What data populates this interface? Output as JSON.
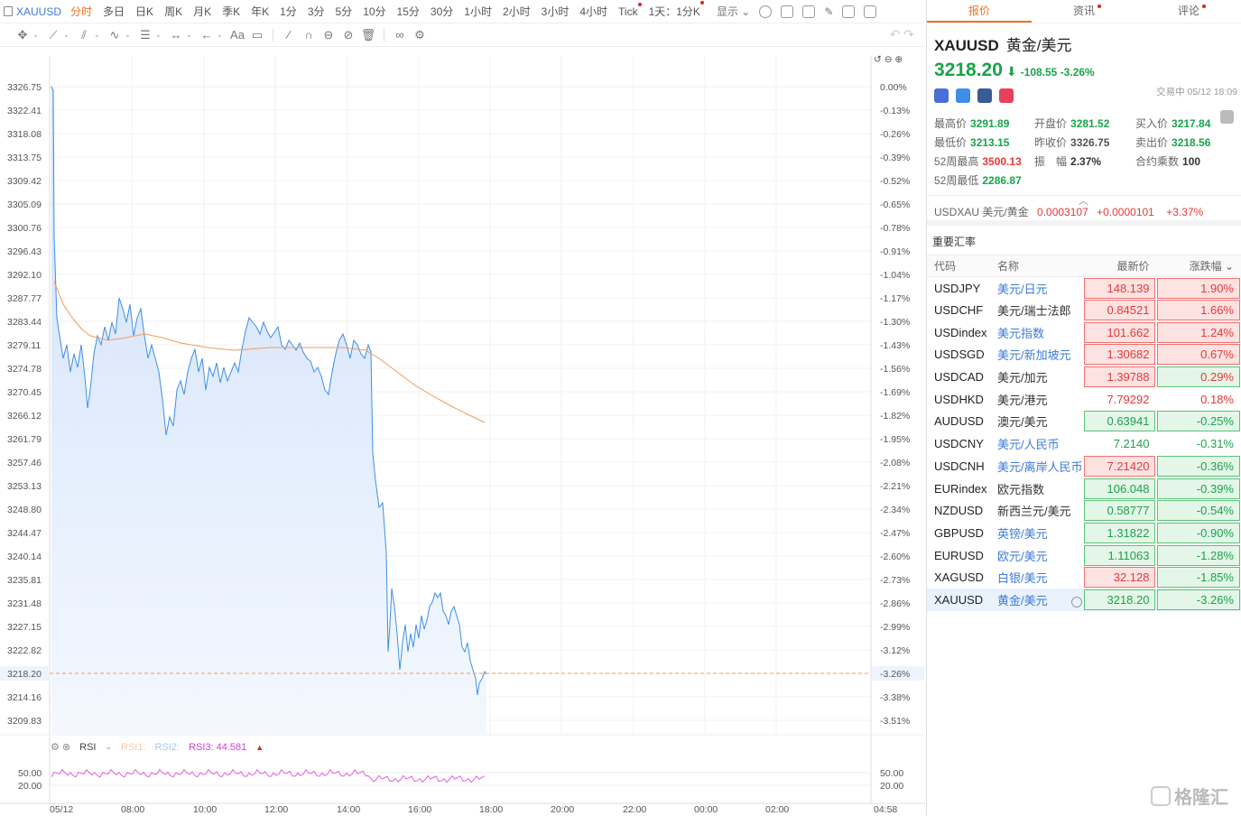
{
  "topbar": {
    "symbol": "XAUUSD",
    "periods": [
      {
        "label": "分时",
        "active": true,
        "dot": false
      },
      {
        "label": "多日",
        "active": false,
        "dot": false
      },
      {
        "label": "日K",
        "active": false,
        "dot": false
      },
      {
        "label": "周K",
        "active": false,
        "dot": false
      },
      {
        "label": "月K",
        "active": false,
        "dot": false
      },
      {
        "label": "季K",
        "active": false,
        "dot": false
      },
      {
        "label": "年K",
        "active": false,
        "dot": false
      },
      {
        "label": "1分",
        "active": false,
        "dot": false
      },
      {
        "label": "3分",
        "active": false,
        "dot": false
      },
      {
        "label": "5分",
        "active": false,
        "dot": false
      },
      {
        "label": "10分",
        "active": false,
        "dot": false
      },
      {
        "label": "15分",
        "active": false,
        "dot": false
      },
      {
        "label": "30分",
        "active": false,
        "dot": false
      },
      {
        "label": "1小时",
        "active": false,
        "dot": false
      },
      {
        "label": "2小时",
        "active": false,
        "dot": false
      },
      {
        "label": "3小时",
        "active": false,
        "dot": false
      },
      {
        "label": "4小时",
        "active": false,
        "dot": false
      },
      {
        "label": "Tick",
        "active": false,
        "dot": true
      },
      {
        "label": "1天：1分K",
        "active": false,
        "dot": true
      }
    ],
    "display_label": "显示",
    "display_dot": true
  },
  "toolbar": {
    "icons": [
      "crosshair-icon",
      "trend-line-icon",
      "channel-icon",
      "wave-icon",
      "fib-icon",
      "measure-icon",
      "arrow-icon",
      "text-icon",
      "comment-icon",
      "pencil-icon",
      "magnet-icon",
      "lock-icon",
      "hide-icon",
      "trash-icon",
      "link-icon",
      "settings-icon"
    ],
    "text_label": "Aa"
  },
  "chart": {
    "y_ticks": [
      "3326.75",
      "3322.41",
      "3318.08",
      "3313.75",
      "3309.42",
      "3305.09",
      "3300.76",
      "3296.43",
      "3292.10",
      "3287.77",
      "3283.44",
      "3279.11",
      "3274.78",
      "3270.45",
      "3266.12",
      "3261.79",
      "3257.46",
      "3253.13",
      "3248.80",
      "3244.47",
      "3240.14",
      "3235.81",
      "3231.48",
      "3227.15",
      "3222.82",
      "3218.20",
      "3214.16",
      "3209.83"
    ],
    "pct_ticks": [
      "0.00%",
      "-0.13%",
      "-0.26%",
      "-0.39%",
      "-0.52%",
      "-0.65%",
      "-0.78%",
      "-0.91%",
      "-1.04%",
      "-1.17%",
      "-1.30%",
      "-1.43%",
      "-1.56%",
      "-1.69%",
      "-1.82%",
      "-1.95%",
      "-2.08%",
      "-2.21%",
      "-2.34%",
      "-2.47%",
      "-2.60%",
      "-2.73%",
      "-2.86%",
      "-2.99%",
      "-3.12%",
      "-3.26%",
      "-3.38%",
      "-3.51%"
    ],
    "x_ticks": [
      "05/12",
      "08:00",
      "10:00",
      "12:00",
      "14:00",
      "16:00",
      "18:00",
      "20:00",
      "22:00",
      "00:00",
      "02:00",
      "04:58"
    ],
    "current_price": "3218.20",
    "current_pct": "-3.26%",
    "rsi_ticks": [
      "50.00",
      "20.00"
    ],
    "colors": {
      "price_line": "#3d8ee8",
      "avg_line": "#f49a55",
      "area": "#e3eefc",
      "rsi": "#e060e0",
      "current": "#f49a55"
    }
  },
  "rsi": {
    "label": "RSI",
    "rsi1": "RSI1:",
    "rsi2": "RSI2:",
    "rsi3_label": "RSI3:",
    "rsi3_value": "44.581",
    "arrow": "▲"
  },
  "panel": {
    "tabs": [
      {
        "label": "报价",
        "active": true,
        "dot": false
      },
      {
        "label": "资讯",
        "active": false,
        "dot": true
      },
      {
        "label": "评论",
        "active": false,
        "dot": true
      }
    ],
    "symbol": "XAUUSD",
    "name": "黄金/美元",
    "price": "3218.20",
    "arrow": "⬇",
    "change": "-108.55 -3.26%",
    "trade_time": "交易中 05/12 18:09",
    "stats": [
      {
        "k": "最高价",
        "v": "3291.89",
        "c": "green"
      },
      {
        "k": "开盘价",
        "v": "3281.52",
        "c": "green"
      },
      {
        "k": "买入价",
        "v": "3217.84",
        "c": "green"
      },
      {
        "k": "最低价",
        "v": "3213.15",
        "c": "green"
      },
      {
        "k": "昨收价",
        "v": "3326.75",
        "c": "gray"
      },
      {
        "k": "卖出价",
        "v": "3218.56",
        "c": "green"
      },
      {
        "k": "52周最高",
        "v": "3500.13",
        "c": "red"
      },
      {
        "k": "振　幅",
        "v": "2.37%",
        "c": "dark"
      },
      {
        "k": "合约乘数",
        "v": "100",
        "c": "dark"
      },
      {
        "k": "52周最低",
        "v": "2286.87",
        "c": "green"
      },
      {
        "k": "",
        "v": "",
        "c": "dark"
      },
      {
        "k": "",
        "v": "",
        "c": "dark"
      }
    ],
    "usdxau": {
      "name": "USDXAU 美元/黄金",
      "price": "0.0003107",
      "chg": "+0.0000101",
      "pct": "+3.37%"
    },
    "fx_title": "重要汇率",
    "fx_headers": {
      "code": "代码",
      "name": "名称",
      "price": "最新价",
      "pct": "涨跌幅"
    },
    "fx_rows": [
      {
        "code": "USDJPY",
        "name": "美元/日元",
        "link": true,
        "price": "148.139",
        "pct": "1.90%",
        "pstyle": "up",
        "cstyle": "up"
      },
      {
        "code": "USDCHF",
        "name": "美元/瑞士法郎",
        "link": false,
        "price": "0.84521",
        "pct": "1.66%",
        "pstyle": "up",
        "cstyle": "up"
      },
      {
        "code": "USDindex",
        "name": "美元指数",
        "link": true,
        "price": "101.662",
        "pct": "1.24%",
        "pstyle": "up",
        "cstyle": "up"
      },
      {
        "code": "USDSGD",
        "name": "美元/新加坡元",
        "link": true,
        "price": "1.30682",
        "pct": "0.67%",
        "pstyle": "up",
        "cstyle": "up"
      },
      {
        "code": "USDCAD",
        "name": "美元/加元",
        "link": false,
        "price": "1.39788",
        "pct": "0.29%",
        "pstyle": "up",
        "cstyle": "down-plain-up"
      },
      {
        "code": "USDHKD",
        "name": "美元/港元",
        "link": false,
        "price": "7.79292",
        "pct": "0.18%",
        "pstyle": "plainup",
        "cstyle": "plainup"
      },
      {
        "code": "AUDUSD",
        "name": "澳元/美元",
        "link": false,
        "price": "0.63941",
        "pct": "-0.25%",
        "pstyle": "down",
        "cstyle": "down"
      },
      {
        "code": "USDCNY",
        "name": "美元/人民币",
        "link": true,
        "price": "7.2140",
        "pct": "-0.31%",
        "pstyle": "plaindown",
        "cstyle": "plaindown"
      },
      {
        "code": "USDCNH",
        "name": "美元/离岸人民币",
        "link": true,
        "price": "7.21420",
        "pct": "-0.36%",
        "pstyle": "up",
        "cstyle": "down"
      },
      {
        "code": "EURindex",
        "name": "欧元指数",
        "link": false,
        "price": "106.048",
        "pct": "-0.39%",
        "pstyle": "down",
        "cstyle": "down"
      },
      {
        "code": "NZDUSD",
        "name": "新西兰元/美元",
        "link": false,
        "price": "0.58777",
        "pct": "-0.54%",
        "pstyle": "down",
        "cstyle": "down"
      },
      {
        "code": "GBPUSD",
        "name": "英镑/美元",
        "link": true,
        "price": "1.31822",
        "pct": "-0.90%",
        "pstyle": "down",
        "cstyle": "down"
      },
      {
        "code": "EURUSD",
        "name": "欧元/美元",
        "link": true,
        "price": "1.11063",
        "pct": "-1.28%",
        "pstyle": "down",
        "cstyle": "down"
      },
      {
        "code": "XAGUSD",
        "name": "白银/美元",
        "link": true,
        "price": "32.128",
        "pct": "-1.85%",
        "pstyle": "up",
        "cstyle": "down"
      },
      {
        "code": "XAUUSD",
        "name": "黄金/美元",
        "link": true,
        "price": "3218.20",
        "pct": "-3.26%",
        "pstyle": "down",
        "cstyle": "down",
        "selected": true
      }
    ],
    "watermark": "格隆汇"
  }
}
